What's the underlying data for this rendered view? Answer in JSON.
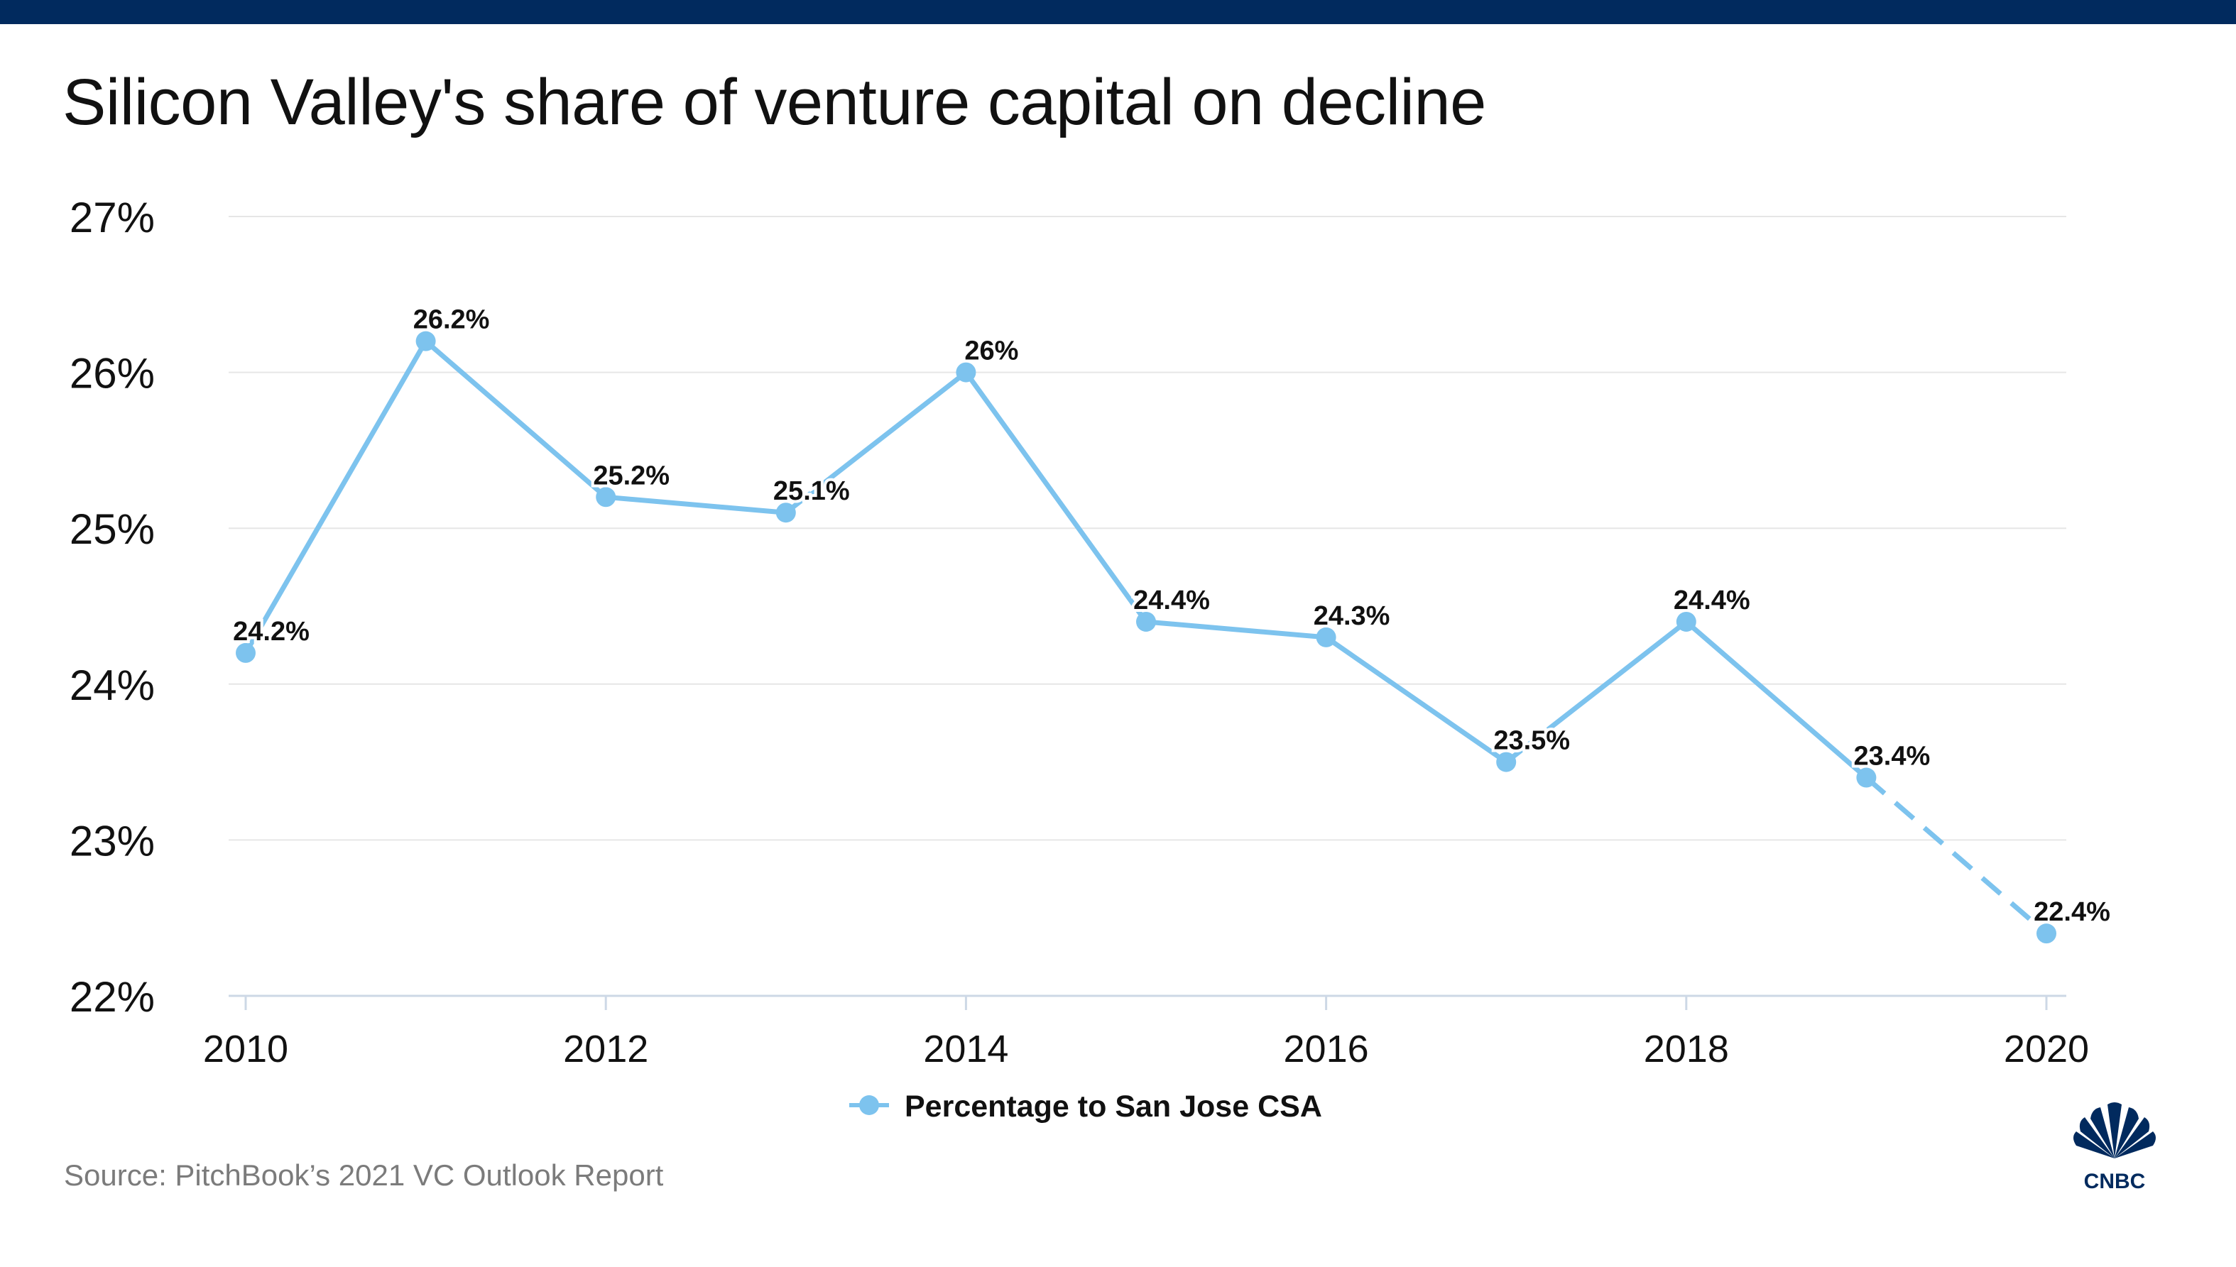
{
  "title": "Silicon Valley's share of venture capital on decline",
  "source": "Source: PitchBook’s 2021 VC Outlook Report",
  "logo_text": "CNBC",
  "colors": {
    "top_bar": "#012a5e",
    "series": "#7dc3ee",
    "grid": "#e6e6e6",
    "axis": "#cdd8e6",
    "text": "#111111",
    "source_text": "#7b7b7b"
  },
  "chart_data": {
    "type": "line",
    "x": [
      2010,
      2011,
      2012,
      2013,
      2014,
      2015,
      2016,
      2017,
      2018,
      2019,
      2020
    ],
    "series": [
      {
        "name": "Percentage to San Jose CSA",
        "values": [
          24.2,
          26.2,
          25.2,
          25.1,
          26,
          24.4,
          24.3,
          23.5,
          24.4,
          23.4,
          22.4
        ],
        "data_labels": [
          "24.2%",
          "26.2%",
          "25.2%",
          "25.1%",
          "26%",
          "24.4%",
          "24.3%",
          "23.5%",
          "24.4%",
          "23.4%",
          "22.4%"
        ],
        "dashed_from": 2019
      }
    ],
    "xticks": [
      2010,
      2012,
      2014,
      2016,
      2018,
      2020
    ],
    "xtick_labels": [
      "2010",
      "2012",
      "2014",
      "2016",
      "2018",
      "2020"
    ],
    "yticks": [
      22,
      23,
      24,
      25,
      26,
      27
    ],
    "ytick_labels": [
      "22%",
      "23%",
      "24%",
      "25%",
      "26%",
      "27%"
    ],
    "xlim": [
      2010,
      2020
    ],
    "ylim": [
      22,
      27
    ],
    "grid": true,
    "legend_position": "bottom-center"
  }
}
